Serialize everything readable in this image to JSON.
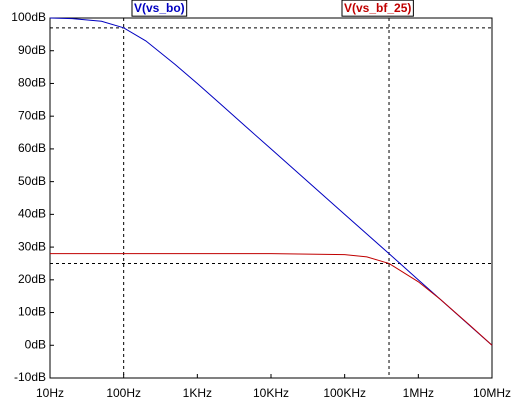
{
  "chart_data": {
    "type": "line",
    "log_x": true,
    "x": [
      10,
      20,
      50,
      100,
      200,
      500,
      1000,
      2000,
      5000,
      10000,
      100000,
      200000,
      400000,
      1000000,
      2000000,
      5000000,
      10000000
    ],
    "series": [
      {
        "name": "V(vs_bo)",
        "color": "#0000c0",
        "values": [
          100,
          99.8,
          99.0,
          97.0,
          93.0,
          85.8,
          80.0,
          74.0,
          66.0,
          60.0,
          40.0,
          34.0,
          28.0,
          20.0,
          14.0,
          6.0,
          0.0
        ]
      },
      {
        "name": "V(vs_bf_25)",
        "color": "#c00000",
        "values": [
          28,
          28,
          28,
          28,
          28,
          28,
          28,
          28,
          28,
          28,
          27.7,
          27.0,
          25.0,
          19.4,
          14.0,
          6.1,
          0.0
        ]
      }
    ],
    "xlim": [
      10,
      10000000
    ],
    "xticks": [
      {
        "value": 10,
        "label": "10Hz"
      },
      {
        "value": 100,
        "label": "100Hz"
      },
      {
        "value": 1000,
        "label": "1KHz"
      },
      {
        "value": 10000,
        "label": "10KHz"
      },
      {
        "value": 100000,
        "label": "100KHz"
      },
      {
        "value": 1000000,
        "label": "1MHz"
      },
      {
        "value": 10000000,
        "label": "10MHz"
      }
    ],
    "ylim": [
      -10,
      100
    ],
    "yticks": [
      {
        "value": 100,
        "label": "100dB"
      },
      {
        "value": 90,
        "label": "90dB"
      },
      {
        "value": 80,
        "label": "80dB"
      },
      {
        "value": 70,
        "label": "70dB"
      },
      {
        "value": 60,
        "label": "60dB"
      },
      {
        "value": 50,
        "label": "50dB"
      },
      {
        "value": 40,
        "label": "40dB"
      },
      {
        "value": 30,
        "label": "30dB"
      },
      {
        "value": 20,
        "label": "20dB"
      },
      {
        "value": 10,
        "label": "10dB"
      },
      {
        "value": 0,
        "label": "0dB"
      },
      {
        "value": -10,
        "label": "-10dB"
      }
    ],
    "cursors": [
      {
        "x": 100,
        "y": 97
      },
      {
        "x": 400000,
        "y": 25
      }
    ]
  }
}
